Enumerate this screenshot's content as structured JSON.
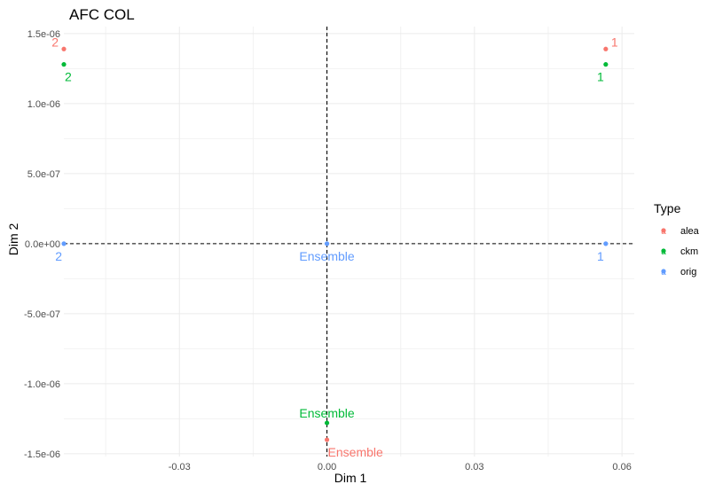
{
  "chart_data": {
    "type": "scatter",
    "title": "AFC COL",
    "xlabel": "Dim 1",
    "ylabel": "Dim 2",
    "xlim": [
      -0.0535,
      0.0625
    ],
    "ylim": [
      -1.52e-06,
      1.55e-06
    ],
    "x_ticks": [
      -0.03,
      0.0,
      0.03,
      0.06
    ],
    "x_tick_labels": [
      "-0.03",
      "0.00",
      "0.03",
      "0.06"
    ],
    "y_ticks": [
      -1.5e-06,
      -1e-06,
      -5e-07,
      0.0,
      5e-07,
      1e-06,
      1.5e-06
    ],
    "y_tick_labels": [
      "-1.5e-06",
      "-1.0e-06",
      "-5.0e-07",
      "0.0e+00",
      "5.0e-07",
      "1.0e-06",
      "1.5e-06"
    ],
    "grid": true,
    "reference_lines": {
      "x": 0,
      "y": 0,
      "style": "dashed"
    },
    "legend": {
      "title": "Type",
      "position": "right",
      "entries": [
        {
          "name": "alea",
          "color": "#F8766D"
        },
        {
          "name": "ckm",
          "color": "#00BA38"
        },
        {
          "name": "orig",
          "color": "#619CFF"
        }
      ]
    },
    "series": [
      {
        "name": "alea",
        "color": "#F8766D",
        "points": [
          {
            "label": "1",
            "x": 0.0567,
            "y": 1.39e-06,
            "label_pos": "right"
          },
          {
            "label": "2",
            "x": -0.0535,
            "y": 1.39e-06,
            "label_pos": "left"
          },
          {
            "label": "Ensemble",
            "x": 0.0,
            "y": -1.4e-06,
            "label_pos": "below-right"
          }
        ]
      },
      {
        "name": "ckm",
        "color": "#00BA38",
        "points": [
          {
            "label": "1",
            "x": 0.0567,
            "y": 1.28e-06,
            "label_pos": "below-left"
          },
          {
            "label": "2",
            "x": -0.0535,
            "y": 1.28e-06,
            "label_pos": "below-right"
          },
          {
            "label": "Ensemble",
            "x": 0.0,
            "y": -1.28e-06,
            "label_pos": "above"
          }
        ]
      },
      {
        "name": "orig",
        "color": "#619CFF",
        "points": [
          {
            "label": "1",
            "x": 0.0567,
            "y": 0.0,
            "label_pos": "below-left"
          },
          {
            "label": "2",
            "x": -0.0535,
            "y": 0.0,
            "label_pos": "below-left"
          },
          {
            "label": "Ensemble",
            "x": 0.0,
            "y": 0.0,
            "label_pos": "below"
          }
        ]
      }
    ]
  }
}
